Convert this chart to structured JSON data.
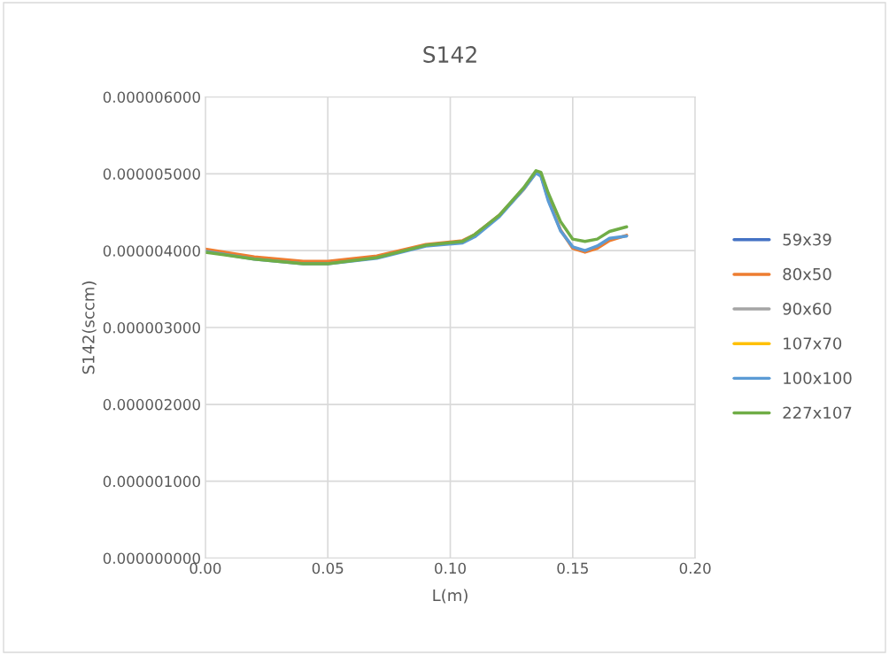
{
  "chart_data": {
    "type": "line",
    "title": "S142",
    "xlabel": "L(m)",
    "ylabel": "S142(sccm)",
    "x": [
      0.0,
      0.02,
      0.04,
      0.05,
      0.07,
      0.09,
      0.105,
      0.11,
      0.12,
      0.13,
      0.135,
      0.137,
      0.14,
      0.145,
      0.15,
      0.155,
      0.16,
      0.165,
      0.172
    ],
    "series": [
      {
        "name": "59x39",
        "color": "#4472c4",
        "values": [
          null,
          null,
          null,
          null,
          null,
          null,
          null,
          null,
          null,
          null,
          null,
          null,
          null,
          null,
          null,
          null,
          null,
          null,
          null
        ]
      },
      {
        "name": "80x50",
        "color": "#ed7d31",
        "values": [
          4.02e-06,
          3.92e-06,
          3.86e-06,
          3.86e-06,
          3.93e-06,
          4.08e-06,
          4.13e-06,
          4.21e-06,
          4.46e-06,
          4.8e-06,
          5.02e-06,
          4.98e-06,
          4.67e-06,
          4.27e-06,
          4.03e-06,
          3.98e-06,
          4.03e-06,
          4.13e-06,
          4.2e-06
        ]
      },
      {
        "name": "90x60",
        "color": "#a5a5a5",
        "values": [
          null,
          null,
          null,
          null,
          null,
          null,
          null,
          null,
          null,
          null,
          null,
          null,
          null,
          null,
          null,
          null,
          null,
          null,
          null
        ]
      },
      {
        "name": "107x70",
        "color": "#ffc000",
        "values": [
          null,
          null,
          null,
          null,
          null,
          null,
          null,
          null,
          null,
          null,
          null,
          null,
          null,
          null,
          null,
          null,
          null,
          null,
          null
        ]
      },
      {
        "name": "100x100",
        "color": "#5b9bd5",
        "values": [
          3.99e-06,
          3.89e-06,
          3.83e-06,
          3.83e-06,
          3.9e-06,
          4.06e-06,
          4.1e-06,
          4.18e-06,
          4.44e-06,
          4.8e-06,
          5.01e-06,
          4.97e-06,
          4.65e-06,
          4.26e-06,
          4.05e-06,
          4e-06,
          4.06e-06,
          4.16e-06,
          4.19e-06
        ]
      },
      {
        "name": "227x107",
        "color": "#70ad47",
        "values": [
          3.98e-06,
          3.89e-06,
          3.83e-06,
          3.83e-06,
          3.91e-06,
          4.07e-06,
          4.12e-06,
          4.21e-06,
          4.46e-06,
          4.82e-06,
          5.04e-06,
          5.02e-06,
          4.75e-06,
          4.38e-06,
          4.15e-06,
          4.12e-06,
          4.15e-06,
          4.25e-06,
          4.31e-06
        ]
      }
    ],
    "xlim": [
      0.0,
      0.2
    ],
    "xticks": [
      {
        "value": 0.0,
        "label": "0.00"
      },
      {
        "value": 0.05,
        "label": "0.05"
      },
      {
        "value": 0.1,
        "label": "0.10"
      },
      {
        "value": 0.15,
        "label": "0.15"
      },
      {
        "value": 0.2,
        "label": "0.20"
      }
    ],
    "ylim": [
      0,
      6e-06
    ],
    "yticks": [
      {
        "value": 0,
        "label": "0.000000000"
      },
      {
        "value": 1e-06,
        "label": "0.000001000"
      },
      {
        "value": 2e-06,
        "label": "0.000002000"
      },
      {
        "value": 3e-06,
        "label": "0.000003000"
      },
      {
        "value": 4e-06,
        "label": "0.000004000"
      },
      {
        "value": 5e-06,
        "label": "0.000005000"
      },
      {
        "value": 6e-06,
        "label": "0.000006000"
      }
    ],
    "grid": true,
    "legend": "right",
    "marker": "none",
    "line_style": "solid"
  }
}
